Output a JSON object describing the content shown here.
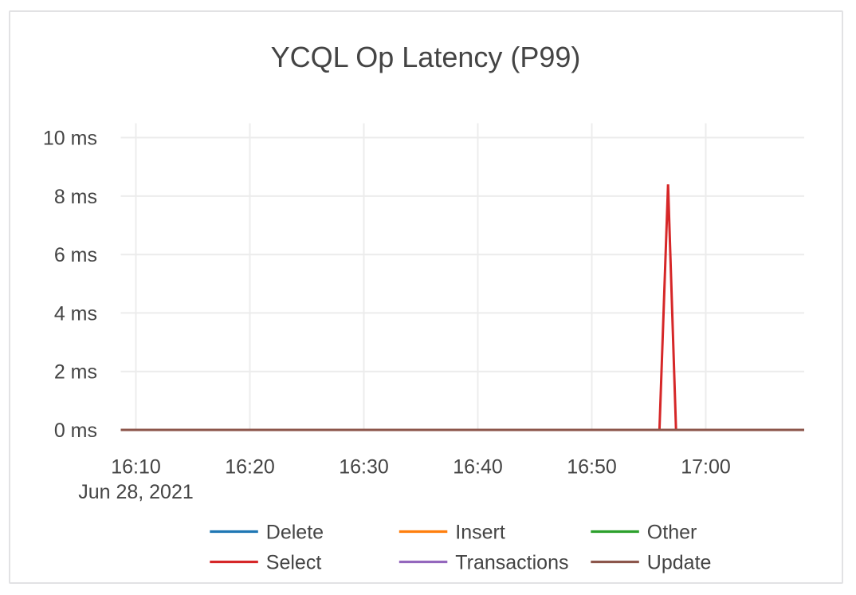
{
  "chart_data": {
    "type": "line",
    "title": "YCQL Op Latency (P99)",
    "xlabel": "",
    "ylabel": "",
    "x_date_label": "Jun 28, 2021",
    "x_unit": "minutes after 16:00 on Jun 28, 2021",
    "y_unit": "ms",
    "xlim": [
      8.671,
      68.636
    ],
    "ylim": [
      0,
      10.492
    ],
    "grid": true,
    "legend_position": "bottom-horizontal",
    "x_ticks": [
      {
        "value": 10,
        "label": "16:10"
      },
      {
        "value": 20,
        "label": "16:20"
      },
      {
        "value": 30,
        "label": "16:30"
      },
      {
        "value": 40,
        "label": "16:40"
      },
      {
        "value": 50,
        "label": "16:50"
      },
      {
        "value": 60,
        "label": "17:00"
      }
    ],
    "y_ticks": [
      {
        "value": 0,
        "label": "0 ms"
      },
      {
        "value": 2,
        "label": "2 ms"
      },
      {
        "value": 4,
        "label": "4 ms"
      },
      {
        "value": 6,
        "label": "6 ms"
      },
      {
        "value": 8,
        "label": "8 ms"
      },
      {
        "value": 10,
        "label": "10 ms"
      }
    ],
    "series": [
      {
        "name": "Delete",
        "color": "#1f77b4",
        "points": [
          [
            8.671,
            0
          ],
          [
            68.636,
            0
          ]
        ]
      },
      {
        "name": "Insert",
        "color": "#ff7f0e",
        "points": [
          [
            8.671,
            0
          ],
          [
            68.636,
            0
          ]
        ]
      },
      {
        "name": "Other",
        "color": "#2ca02c",
        "points": [
          [
            8.671,
            0
          ],
          [
            68.636,
            0
          ]
        ]
      },
      {
        "name": "Select",
        "color": "#d62728",
        "points": [
          [
            8.671,
            0
          ],
          [
            55.94,
            0
          ],
          [
            56.69,
            8.4
          ],
          [
            57.39,
            0
          ],
          [
            68.636,
            0
          ]
        ]
      },
      {
        "name": "Transactions",
        "color": "#9467bd",
        "points": [
          [
            8.671,
            0
          ],
          [
            68.636,
            0
          ]
        ]
      },
      {
        "name": "Update",
        "color": "#8c564b",
        "points": [
          [
            8.671,
            0
          ],
          [
            68.636,
            0
          ]
        ]
      }
    ],
    "legend": [
      {
        "label": "Delete",
        "color": "#1f77b4"
      },
      {
        "label": "Insert",
        "color": "#ff7f0e"
      },
      {
        "label": "Other",
        "color": "#2ca02c"
      },
      {
        "label": "Select",
        "color": "#d62728"
      },
      {
        "label": "Transactions",
        "color": "#9467bd"
      },
      {
        "label": "Update",
        "color": "#8c564b"
      }
    ],
    "colors": {
      "text": "#444444",
      "grid": "#ececec",
      "background": "#ffffff",
      "card_border": "#e2e2e4"
    }
  }
}
